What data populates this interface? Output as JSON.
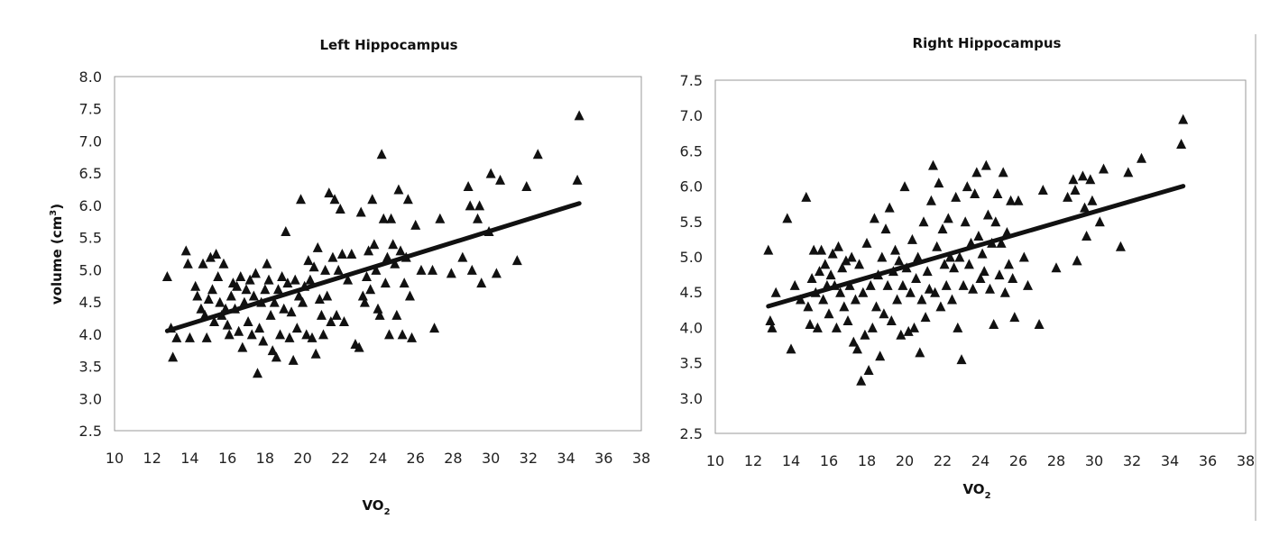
{
  "chart_data": [
    {
      "type": "scatter",
      "title": "Left Hippocampus",
      "xlabel": "VO",
      "xlabel_sub": "2",
      "ylabel": "volume (cm",
      "ylabel_sup": "3",
      "ylabel_end": ")",
      "xlim": [
        10,
        38
      ],
      "ylim": [
        2.5,
        8.0
      ],
      "xticks": [
        "10",
        "12",
        "14",
        "16",
        "18",
        "20",
        "22",
        "24",
        "26",
        "28",
        "30",
        "32",
        "34",
        "36",
        "38"
      ],
      "yticks": [
        "2.5",
        "3.0",
        "3.5",
        "4.0",
        "4.5",
        "5.0",
        "5.5",
        "6.0",
        "6.5",
        "7.0",
        "7.5",
        "8.0"
      ],
      "marker": "triangle",
      "grid": false,
      "trendline": {
        "x": [
          12.8,
          34.7
        ],
        "y": [
          4.05,
          6.03
        ]
      },
      "points": [
        [
          12.8,
          4.9
        ],
        [
          13.0,
          4.1
        ],
        [
          13.1,
          3.65
        ],
        [
          13.3,
          3.95
        ],
        [
          13.8,
          5.3
        ],
        [
          13.9,
          5.1
        ],
        [
          14.0,
          3.95
        ],
        [
          14.3,
          4.75
        ],
        [
          14.4,
          4.6
        ],
        [
          14.6,
          4.4
        ],
        [
          14.7,
          5.1
        ],
        [
          14.8,
          4.3
        ],
        [
          14.9,
          3.95
        ],
        [
          15.0,
          4.55
        ],
        [
          15.1,
          5.2
        ],
        [
          15.2,
          4.7
        ],
        [
          15.3,
          4.2
        ],
        [
          15.4,
          5.25
        ],
        [
          15.5,
          4.9
        ],
        [
          15.6,
          4.5
        ],
        [
          15.7,
          4.3
        ],
        [
          15.8,
          5.1
        ],
        [
          15.9,
          4.4
        ],
        [
          16.0,
          4.15
        ],
        [
          16.1,
          4.0
        ],
        [
          16.2,
          4.6
        ],
        [
          16.3,
          4.8
        ],
        [
          16.4,
          4.4
        ],
        [
          16.5,
          4.75
        ],
        [
          16.6,
          4.05
        ],
        [
          16.7,
          4.9
        ],
        [
          16.8,
          3.8
        ],
        [
          16.9,
          4.5
        ],
        [
          17.0,
          4.7
        ],
        [
          17.1,
          4.2
        ],
        [
          17.2,
          4.85
        ],
        [
          17.3,
          4.0
        ],
        [
          17.4,
          4.6
        ],
        [
          17.5,
          4.95
        ],
        [
          17.6,
          3.4
        ],
        [
          17.7,
          4.1
        ],
        [
          17.8,
          4.5
        ],
        [
          17.9,
          3.9
        ],
        [
          18.0,
          4.7
        ],
        [
          18.1,
          5.1
        ],
        [
          18.2,
          4.85
        ],
        [
          18.3,
          4.3
        ],
        [
          18.4,
          3.75
        ],
        [
          18.5,
          4.5
        ],
        [
          18.6,
          3.65
        ],
        [
          18.7,
          4.7
        ],
        [
          18.8,
          4.0
        ],
        [
          18.9,
          4.9
        ],
        [
          19.0,
          4.4
        ],
        [
          19.1,
          5.6
        ],
        [
          19.2,
          4.8
        ],
        [
          19.3,
          3.95
        ],
        [
          19.4,
          4.35
        ],
        [
          19.5,
          3.6
        ],
        [
          19.6,
          4.85
        ],
        [
          19.7,
          4.1
        ],
        [
          19.8,
          4.6
        ],
        [
          19.9,
          6.1
        ],
        [
          20.0,
          4.5
        ],
        [
          20.1,
          4.75
        ],
        [
          20.2,
          4.0
        ],
        [
          20.3,
          5.15
        ],
        [
          20.4,
          4.85
        ],
        [
          20.5,
          3.95
        ],
        [
          20.6,
          5.05
        ],
        [
          20.7,
          3.7
        ],
        [
          20.8,
          5.35
        ],
        [
          20.9,
          4.55
        ],
        [
          21.0,
          4.3
        ],
        [
          21.1,
          4.0
        ],
        [
          21.2,
          5.0
        ],
        [
          21.3,
          4.6
        ],
        [
          21.4,
          6.2
        ],
        [
          21.5,
          4.2
        ],
        [
          21.6,
          5.2
        ],
        [
          21.7,
          6.1
        ],
        [
          21.8,
          4.3
        ],
        [
          21.9,
          5.0
        ],
        [
          22.0,
          5.95
        ],
        [
          22.1,
          5.25
        ],
        [
          22.2,
          4.2
        ],
        [
          22.4,
          4.85
        ],
        [
          22.6,
          5.25
        ],
        [
          22.8,
          3.85
        ],
        [
          23.0,
          3.8
        ],
        [
          23.1,
          5.9
        ],
        [
          23.2,
          4.6
        ],
        [
          23.3,
          4.5
        ],
        [
          23.4,
          4.9
        ],
        [
          23.5,
          5.3
        ],
        [
          23.6,
          4.7
        ],
        [
          23.7,
          6.1
        ],
        [
          23.8,
          5.4
        ],
        [
          23.9,
          5.0
        ],
        [
          24.0,
          4.4
        ],
        [
          24.1,
          4.3
        ],
        [
          24.2,
          6.8
        ],
        [
          24.3,
          5.8
        ],
        [
          24.4,
          4.8
        ],
        [
          24.5,
          5.2
        ],
        [
          24.6,
          4.0
        ],
        [
          24.7,
          5.8
        ],
        [
          24.8,
          5.4
        ],
        [
          24.9,
          5.1
        ],
        [
          25.0,
          4.3
        ],
        [
          25.1,
          6.25
        ],
        [
          25.2,
          5.3
        ],
        [
          25.3,
          4.0
        ],
        [
          25.4,
          4.8
        ],
        [
          25.5,
          5.2
        ],
        [
          25.6,
          6.1
        ],
        [
          25.7,
          4.6
        ],
        [
          25.8,
          3.95
        ],
        [
          26.0,
          5.7
        ],
        [
          26.3,
          5.0
        ],
        [
          26.9,
          5.0
        ],
        [
          27.0,
          4.1
        ],
        [
          27.3,
          5.8
        ],
        [
          27.9,
          4.95
        ],
        [
          28.5,
          5.2
        ],
        [
          28.8,
          6.3
        ],
        [
          28.9,
          6.0
        ],
        [
          29.0,
          5.0
        ],
        [
          29.3,
          5.8
        ],
        [
          29.4,
          6.0
        ],
        [
          29.5,
          4.8
        ],
        [
          29.9,
          5.6
        ],
        [
          30.0,
          6.5
        ],
        [
          30.3,
          4.95
        ],
        [
          30.5,
          6.4
        ],
        [
          31.4,
          5.15
        ],
        [
          31.9,
          6.3
        ],
        [
          32.5,
          6.8
        ],
        [
          34.6,
          6.4
        ],
        [
          34.7,
          7.4
        ]
      ]
    },
    {
      "type": "scatter",
      "title": "Right Hippocampus",
      "xlabel": "VO",
      "xlabel_sub": "2",
      "xlim": [
        10,
        38
      ],
      "ylim": [
        2.5,
        7.5
      ],
      "xticks": [
        "10",
        "12",
        "14",
        "16",
        "18",
        "20",
        "22",
        "24",
        "26",
        "28",
        "30",
        "32",
        "34",
        "36",
        "38"
      ],
      "yticks": [
        "2.5",
        "3.0",
        "3.5",
        "4.0",
        "4.5",
        "5.0",
        "5.5",
        "6.0",
        "6.5",
        "7.0",
        "7.5"
      ],
      "marker": "triangle",
      "grid": false,
      "trendline": {
        "x": [
          12.8,
          34.7
        ],
        "y": [
          4.3,
          6.0
        ]
      },
      "points": [
        [
          12.8,
          5.1
        ],
        [
          12.9,
          4.1
        ],
        [
          13.0,
          4.0
        ],
        [
          13.2,
          4.5
        ],
        [
          13.8,
          5.55
        ],
        [
          14.0,
          3.7
        ],
        [
          14.2,
          4.6
        ],
        [
          14.5,
          4.4
        ],
        [
          14.8,
          5.85
        ],
        [
          14.9,
          4.3
        ],
        [
          15.0,
          4.05
        ],
        [
          15.1,
          4.7
        ],
        [
          15.2,
          5.1
        ],
        [
          15.3,
          4.5
        ],
        [
          15.4,
          4.0
        ],
        [
          15.5,
          4.8
        ],
        [
          15.6,
          5.1
        ],
        [
          15.7,
          4.4
        ],
        [
          15.8,
          4.9
        ],
        [
          15.9,
          4.6
        ],
        [
          16.0,
          4.2
        ],
        [
          16.1,
          4.75
        ],
        [
          16.2,
          5.05
        ],
        [
          16.3,
          4.6
        ],
        [
          16.4,
          4.0
        ],
        [
          16.5,
          5.15
        ],
        [
          16.6,
          4.5
        ],
        [
          16.7,
          4.85
        ],
        [
          16.8,
          4.3
        ],
        [
          16.9,
          4.95
        ],
        [
          17.0,
          4.1
        ],
        [
          17.1,
          4.6
        ],
        [
          17.2,
          5.0
        ],
        [
          17.3,
          3.8
        ],
        [
          17.4,
          4.4
        ],
        [
          17.5,
          3.7
        ],
        [
          17.6,
          4.9
        ],
        [
          17.7,
          3.25
        ],
        [
          17.8,
          4.5
        ],
        [
          17.9,
          3.9
        ],
        [
          18.0,
          5.2
        ],
        [
          18.1,
          3.4
        ],
        [
          18.2,
          4.6
        ],
        [
          18.3,
          4.0
        ],
        [
          18.4,
          5.55
        ],
        [
          18.5,
          4.3
        ],
        [
          18.6,
          4.75
        ],
        [
          18.7,
          3.6
        ],
        [
          18.8,
          5.0
        ],
        [
          18.9,
          4.2
        ],
        [
          19.0,
          5.4
        ],
        [
          19.1,
          4.6
        ],
        [
          19.2,
          5.7
        ],
        [
          19.3,
          4.1
        ],
        [
          19.4,
          4.8
        ],
        [
          19.5,
          5.1
        ],
        [
          19.6,
          4.4
        ],
        [
          19.7,
          4.95
        ],
        [
          19.8,
          3.9
        ],
        [
          19.9,
          4.6
        ],
        [
          20.0,
          6.0
        ],
        [
          20.1,
          4.85
        ],
        [
          20.2,
          3.95
        ],
        [
          20.3,
          4.5
        ],
        [
          20.4,
          5.25
        ],
        [
          20.5,
          4.0
        ],
        [
          20.6,
          4.7
        ],
        [
          20.7,
          5.0
        ],
        [
          20.8,
          3.65
        ],
        [
          20.9,
          4.4
        ],
        [
          21.0,
          5.5
        ],
        [
          21.1,
          4.15
        ],
        [
          21.2,
          4.8
        ],
        [
          21.3,
          4.55
        ],
        [
          21.4,
          5.8
        ],
        [
          21.5,
          6.3
        ],
        [
          21.6,
          4.5
        ],
        [
          21.7,
          5.15
        ],
        [
          21.8,
          6.05
        ],
        [
          21.9,
          4.3
        ],
        [
          22.0,
          5.4
        ],
        [
          22.1,
          4.9
        ],
        [
          22.2,
          4.6
        ],
        [
          22.3,
          5.55
        ],
        [
          22.4,
          5.0
        ],
        [
          22.5,
          4.4
        ],
        [
          22.6,
          4.85
        ],
        [
          22.7,
          5.85
        ],
        [
          22.8,
          4.0
        ],
        [
          22.9,
          5.0
        ],
        [
          23.0,
          3.55
        ],
        [
          23.1,
          4.6
        ],
        [
          23.2,
          5.5
        ],
        [
          23.3,
          6.0
        ],
        [
          23.4,
          4.9
        ],
        [
          23.5,
          5.2
        ],
        [
          23.6,
          4.55
        ],
        [
          23.7,
          5.9
        ],
        [
          23.8,
          6.2
        ],
        [
          23.9,
          5.3
        ],
        [
          24.0,
          4.7
        ],
        [
          24.1,
          5.05
        ],
        [
          24.2,
          4.8
        ],
        [
          24.3,
          6.3
        ],
        [
          24.4,
          5.6
        ],
        [
          24.5,
          4.55
        ],
        [
          24.6,
          5.2
        ],
        [
          24.7,
          4.05
        ],
        [
          24.8,
          5.5
        ],
        [
          24.9,
          5.9
        ],
        [
          25.0,
          4.75
        ],
        [
          25.1,
          5.2
        ],
        [
          25.2,
          6.2
        ],
        [
          25.3,
          4.5
        ],
        [
          25.4,
          5.35
        ],
        [
          25.5,
          4.9
        ],
        [
          25.6,
          5.8
        ],
        [
          25.7,
          4.7
        ],
        [
          25.8,
          4.15
        ],
        [
          26.0,
          5.8
        ],
        [
          26.3,
          5.0
        ],
        [
          26.5,
          4.6
        ],
        [
          27.1,
          4.05
        ],
        [
          27.3,
          5.95
        ],
        [
          28.0,
          4.85
        ],
        [
          28.6,
          5.85
        ],
        [
          28.9,
          6.1
        ],
        [
          29.0,
          5.95
        ],
        [
          29.1,
          4.95
        ],
        [
          29.4,
          6.15
        ],
        [
          29.5,
          5.7
        ],
        [
          29.6,
          5.3
        ],
        [
          29.8,
          6.1
        ],
        [
          29.9,
          5.8
        ],
        [
          30.3,
          5.5
        ],
        [
          30.5,
          6.25
        ],
        [
          31.4,
          5.15
        ],
        [
          31.8,
          6.2
        ],
        [
          32.5,
          6.4
        ],
        [
          34.6,
          6.6
        ],
        [
          34.7,
          6.95
        ]
      ]
    }
  ]
}
